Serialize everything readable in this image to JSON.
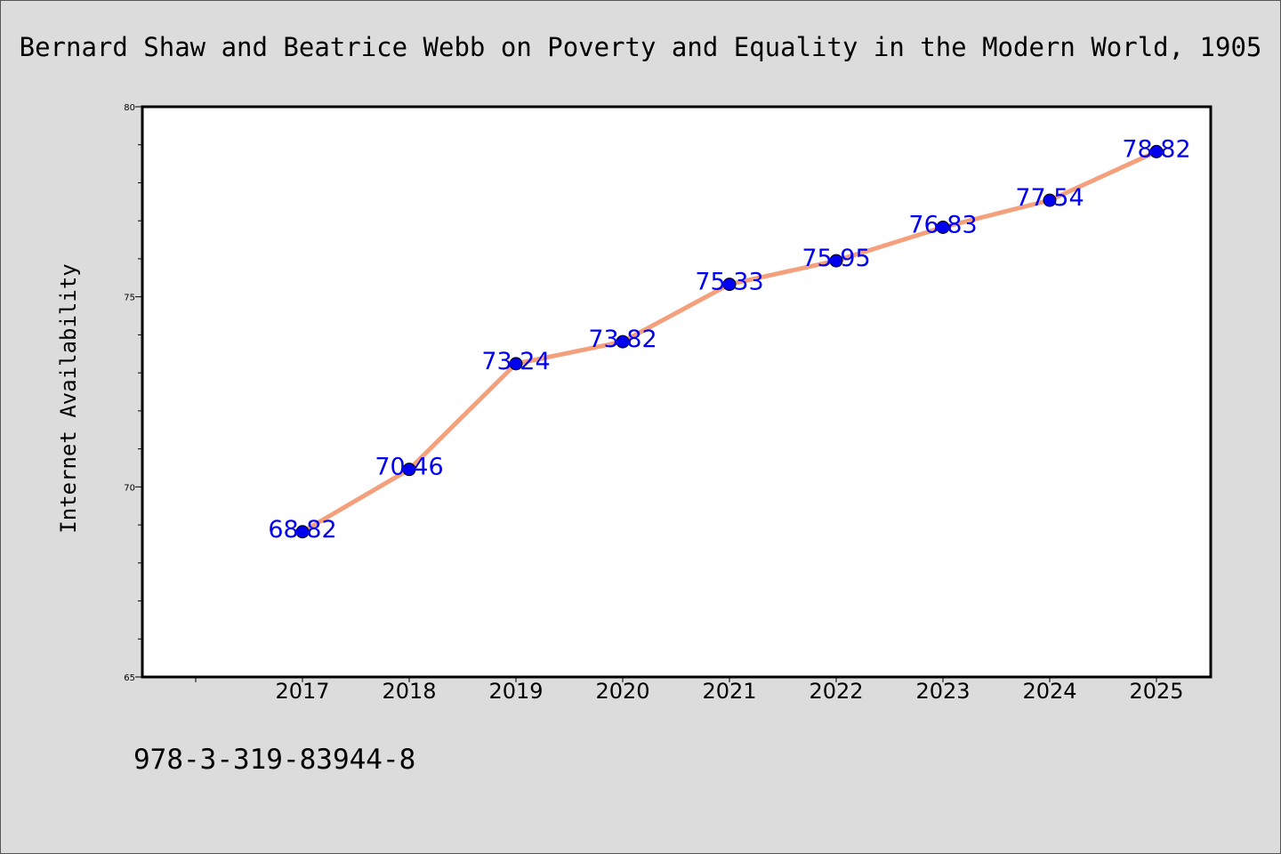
{
  "chart_data": {
    "type": "line",
    "title": "Bernard Shaw and Beatrice Webb on Poverty and Equality in the Modern World, 1905",
    "xlabel": "",
    "ylabel": "Internet Availability",
    "categories": [
      "2017",
      "2018",
      "2019",
      "2020",
      "2021",
      "2022",
      "2023",
      "2024",
      "2025"
    ],
    "series": [
      {
        "values": [
          68.82,
          70.46,
          73.24,
          73.82,
          75.33,
          75.95,
          76.83,
          77.54,
          78.82
        ],
        "data_labels": [
          "68.82",
          "70.46",
          "73.24",
          "73.82",
          "75.33",
          "75.95",
          "76.83",
          "77.54",
          "78.82"
        ],
        "line_color": "#f4a07c",
        "marker_color": "#0000ee",
        "label_color": "#0000ee"
      }
    ],
    "ylim": [
      65,
      80
    ],
    "yticks": [
      "65",
      "70",
      "75",
      "80"
    ],
    "grid": false,
    "legend": "none",
    "footer_text": "978-3-319-83944-8",
    "background_color": "#dcdcdc",
    "plot_background_color": "#ffffff"
  }
}
